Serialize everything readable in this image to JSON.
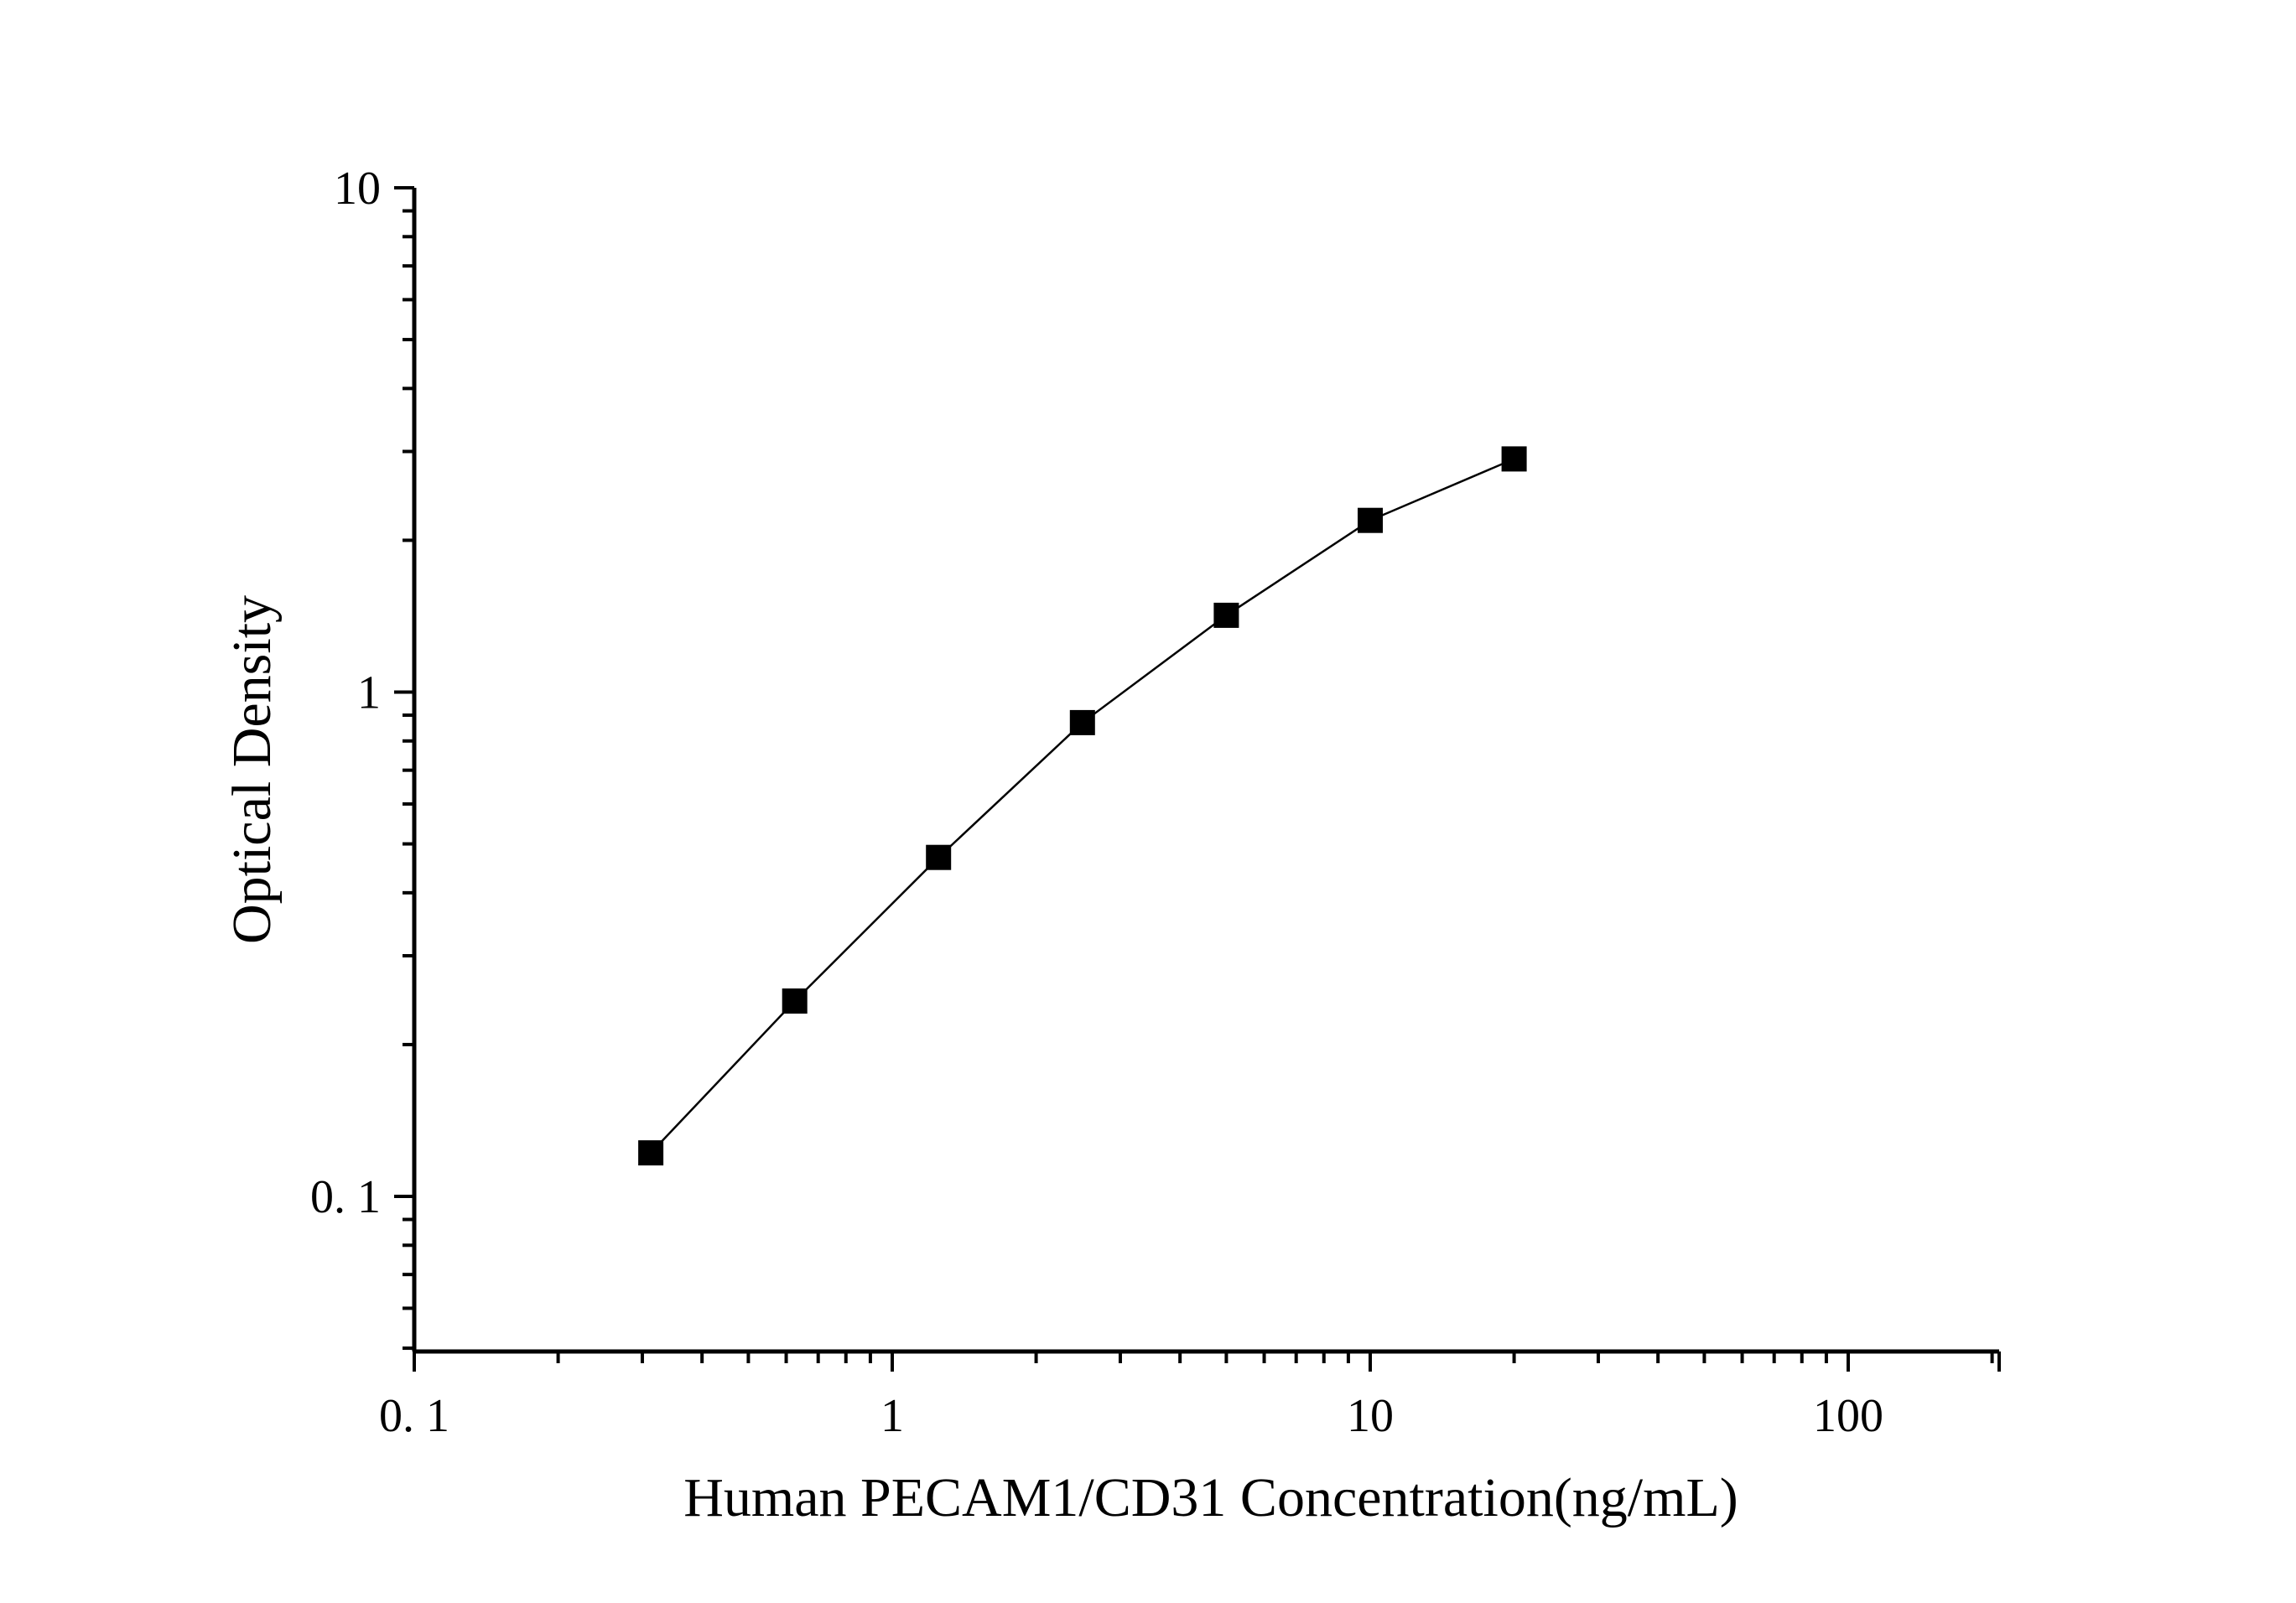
{
  "chart_data": {
    "type": "line",
    "xlabel": "Human PECAM1/CD31 Concentration(ng/mL)",
    "ylabel": "Optical Density",
    "x_scale": "log",
    "y_scale": "log",
    "xlim": [
      0.1,
      200
    ],
    "ylim": [
      0.05,
      10
    ],
    "x_ticks": [
      {
        "value": 0.1,
        "label": "0. 1"
      },
      {
        "value": 1,
        "label": "1"
      },
      {
        "value": 10,
        "label": "10"
      },
      {
        "value": 100,
        "label": "100"
      }
    ],
    "y_ticks": [
      {
        "value": 0.1,
        "label": "0. 1"
      },
      {
        "value": 1,
        "label": "1"
      },
      {
        "value": 10,
        "label": "10"
      }
    ],
    "grid": false,
    "legend": "none",
    "marker": "square",
    "color": "#000000",
    "series": [
      {
        "x": [
          0.3125,
          0.625,
          1.25,
          2.5,
          5,
          10,
          20
        ],
        "y": [
          0.122,
          0.244,
          0.47,
          0.87,
          1.42,
          2.19,
          2.9
        ]
      }
    ]
  }
}
